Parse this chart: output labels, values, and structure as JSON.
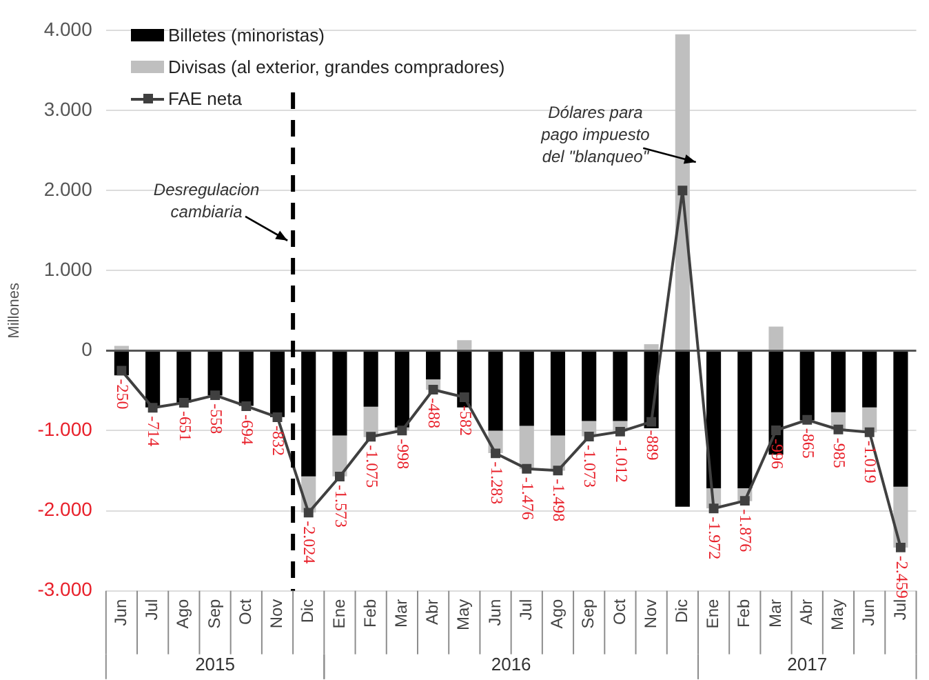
{
  "chart_data": {
    "type": "bar",
    "stacked": true,
    "ylabel": "Millones",
    "legend": "top left",
    "grid": "y",
    "marker": "square",
    "data_labels": false,
    "categories": [
      "Jun",
      "Jul",
      "Ago",
      "Sep",
      "Oct",
      "Nov",
      "Dic",
      "Ene",
      "Feb",
      "Mar",
      "Abr",
      "May",
      "Jun",
      "Jul",
      "Ago",
      "Sep",
      "Oct",
      "Nov",
      "Dic",
      "Ene",
      "Feb",
      "Mar",
      "Abr",
      "May",
      "Jun",
      "Jul"
    ],
    "ylim": [
      -3000,
      4000
    ],
    "yticks": [
      {
        "value": -3000,
        "label": "-3.000"
      },
      {
        "value": -2000,
        "label": "-2.000"
      },
      {
        "value": -1000,
        "label": "-1.000"
      },
      0,
      {
        "value": 1000,
        "label": "1.000"
      },
      {
        "value": 2000,
        "label": "2.000"
      },
      {
        "value": 3000,
        "label": "3.000"
      },
      {
        "value": 4000,
        "label": "4.000"
      }
    ],
    "series": [
      {
        "name": "Billetes (minoristas)",
        "color": "#000000",
        "values": [
          -310,
          -710,
          -650,
          -560,
          -690,
          -830,
          -1570,
          -1060,
          -700,
          -960,
          -360,
          -710,
          -1000,
          -940,
          -1060,
          -880,
          -880,
          -970,
          -1950,
          -1720,
          -1720,
          -1300,
          -870,
          -770,
          -710,
          -1700
        ]
      },
      {
        "name": "Divisas (al exterior, grandes compradores)",
        "color": "#bfbfbf",
        "values": [
          60,
          0,
          0,
          0,
          0,
          0,
          -450,
          -510,
          -380,
          -40,
          -130,
          130,
          -280,
          -540,
          -440,
          -190,
          -130,
          80,
          3950,
          -250,
          -160,
          300,
          0,
          -220,
          -310,
          -760
        ]
      },
      {
        "name": "FAE neta",
        "type": "line",
        "color": "#404040",
        "values": [
          -250,
          -714,
          -651,
          -558,
          -694,
          -832,
          -2024,
          -1573,
          -1075,
          -998,
          -488,
          -582,
          -1283,
          -1476,
          -1498,
          -1073,
          -1012,
          -889,
          2000,
          -1972,
          -1876,
          -996,
          -865,
          -985,
          -1019,
          -2459
        ],
        "value_labels": [
          "-250",
          "-714",
          "-651",
          "-558",
          "-694",
          "-832",
          "-2.024",
          "-1.573",
          "-1.075",
          "-998",
          "-488",
          "-582",
          "-1.283",
          "-1.476",
          "-1.498",
          "-1.073",
          "-1.012",
          "-889",
          null,
          "-1.972",
          "-1.876",
          "-996",
          "-865",
          "-985",
          "-1.019",
          "-2.459"
        ]
      }
    ],
    "ref_lines": [
      {
        "axis": "x",
        "value": "Dic",
        "color": "#000000",
        "line_style": "dashed",
        "label": "Desregulacion cambiaria"
      }
    ],
    "annotations": [
      "Dólares para pago impuesto del \"blanqueo\"",
      "2015",
      "2016",
      "2017"
    ]
  }
}
